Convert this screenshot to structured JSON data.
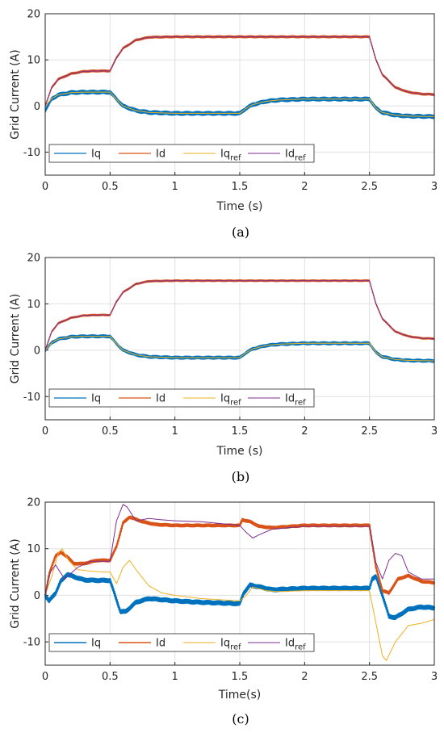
{
  "colors": {
    "Iq": "#0072BD",
    "Id": "#D95319",
    "Iq_ref": "#EDB120",
    "Id_ref": "#7E2F8E",
    "grid": "#e0e0e0",
    "axis": "#262626"
  },
  "chart_data": [
    {
      "type": "line",
      "caption": "(a)",
      "xlabel": "Time (s)",
      "ylabel": "Grid Current (A)",
      "xlim": [
        0,
        3
      ],
      "ylim": [
        -15,
        20
      ],
      "xticks": [
        "0",
        "0.5",
        "1",
        "1.5",
        "2",
        "2.5",
        "3"
      ],
      "yticks": [
        "20",
        "10",
        "0",
        "-10"
      ],
      "grid": true,
      "legend": {
        "placement": "bottom-left",
        "orientation": "horizontal",
        "entries": [
          {
            "base": "Iq",
            "sub": ""
          },
          {
            "base": "Id",
            "sub": ""
          },
          {
            "base": "Iq",
            "sub": "ref"
          },
          {
            "base": "Id",
            "sub": "ref"
          }
        ]
      },
      "series": [
        {
          "name": "Iq",
          "color_key": "Iq",
          "width": 1.2,
          "noise": 0.9,
          "x": [
            0,
            0.05,
            0.1,
            0.2,
            0.3,
            0.4,
            0.5,
            0.55,
            0.6,
            0.7,
            0.8,
            1.0,
            1.2,
            1.5,
            1.55,
            1.6,
            1.7,
            1.8,
            2.0,
            2.3,
            2.5,
            2.55,
            2.6,
            2.7,
            2.8,
            3.0
          ],
          "y": [
            -1,
            1.5,
            2.4,
            2.9,
            3.0,
            3.0,
            3.0,
            1.5,
            0.0,
            -1.0,
            -1.4,
            -1.6,
            -1.6,
            -1.6,
            -0.5,
            0.3,
            1.0,
            1.3,
            1.5,
            1.5,
            1.5,
            -0.5,
            -1.4,
            -2.0,
            -2.2,
            -2.3
          ]
        },
        {
          "name": "Id",
          "color_key": "Id",
          "width": 1.2,
          "noise": 0.5,
          "x": [
            0,
            0.05,
            0.1,
            0.2,
            0.3,
            0.4,
            0.5,
            0.55,
            0.6,
            0.7,
            0.8,
            1.0,
            1.2,
            1.5,
            2.0,
            2.5,
            2.55,
            2.6,
            2.7,
            2.8,
            2.9,
            3.0
          ],
          "y": [
            0,
            4.0,
            5.8,
            7.0,
            7.5,
            7.6,
            7.6,
            10.5,
            12.5,
            14.3,
            14.9,
            15.0,
            15.0,
            15.0,
            15.0,
            15.0,
            10.0,
            6.8,
            4.0,
            3.0,
            2.6,
            2.5
          ]
        },
        {
          "name": "Iq_ref",
          "color_key": "Iq_ref",
          "width": 1.0,
          "noise": 0,
          "x": [
            0,
            0.05,
            0.1,
            0.2,
            0.3,
            0.4,
            0.5,
            0.55,
            0.6,
            0.7,
            0.8,
            1.0,
            1.5,
            1.55,
            1.6,
            1.7,
            1.8,
            2.0,
            2.5,
            2.55,
            2.6,
            2.7,
            2.8,
            3.0
          ],
          "y": [
            0,
            1.6,
            2.4,
            2.9,
            3.0,
            3.0,
            3.0,
            1.4,
            0.0,
            -1.0,
            -1.4,
            -1.6,
            -1.6,
            -0.5,
            0.3,
            1.0,
            1.3,
            1.5,
            1.5,
            -0.5,
            -1.4,
            -2.0,
            -2.2,
            -2.3
          ]
        },
        {
          "name": "Id_ref",
          "color_key": "Id_ref",
          "width": 1.0,
          "noise": 0,
          "x": [
            0,
            0.05,
            0.1,
            0.2,
            0.3,
            0.4,
            0.5,
            0.55,
            0.6,
            0.7,
            0.8,
            1.0,
            2.5,
            2.55,
            2.6,
            2.7,
            2.8,
            2.9,
            3.0
          ],
          "y": [
            0,
            4.0,
            5.8,
            7.0,
            7.5,
            7.6,
            7.6,
            10.5,
            12.5,
            14.3,
            14.9,
            15.0,
            15.0,
            10.0,
            6.8,
            4.0,
            3.0,
            2.6,
            2.5
          ]
        }
      ]
    },
    {
      "type": "line",
      "caption": "(b)",
      "xlabel": "Time (s)",
      "ylabel": "Grid Current (A)",
      "xlim": [
        0,
        3
      ],
      "ylim": [
        -15,
        20
      ],
      "xticks": [
        "0",
        "0.5",
        "1",
        "1.5",
        "2",
        "2.5",
        "3"
      ],
      "yticks": [
        "20",
        "10",
        "0",
        "-10"
      ],
      "grid": true,
      "legend": {
        "placement": "bottom-left",
        "orientation": "horizontal",
        "entries": [
          {
            "base": "Iq",
            "sub": ""
          },
          {
            "base": "Id",
            "sub": ""
          },
          {
            "base": "Iq",
            "sub": "ref"
          },
          {
            "base": "Id",
            "sub": "ref"
          }
        ]
      },
      "series": [
        {
          "name": "Iq",
          "color_key": "Iq",
          "width": 1.2,
          "noise": 0.7,
          "x": [
            0,
            0.05,
            0.1,
            0.2,
            0.3,
            0.4,
            0.5,
            0.55,
            0.6,
            0.7,
            0.8,
            1.0,
            1.2,
            1.5,
            1.55,
            1.6,
            1.7,
            1.8,
            2.0,
            2.3,
            2.5,
            2.55,
            2.6,
            2.7,
            2.8,
            3.0
          ],
          "y": [
            0,
            1.6,
            2.4,
            2.9,
            3.0,
            3.0,
            3.0,
            1.4,
            0.0,
            -1.0,
            -1.4,
            -1.6,
            -1.6,
            -1.6,
            -0.5,
            0.3,
            1.0,
            1.3,
            1.5,
            1.5,
            1.5,
            -0.5,
            -1.4,
            -2.0,
            -2.2,
            -2.3
          ]
        },
        {
          "name": "Id",
          "color_key": "Id",
          "width": 1.2,
          "noise": 0.4,
          "x": [
            0,
            0.05,
            0.1,
            0.2,
            0.3,
            0.4,
            0.5,
            0.55,
            0.6,
            0.7,
            0.8,
            1.0,
            1.2,
            1.5,
            2.0,
            2.5,
            2.55,
            2.6,
            2.7,
            2.8,
            2.9,
            3.0
          ],
          "y": [
            0,
            4.0,
            5.8,
            7.0,
            7.5,
            7.6,
            7.6,
            10.5,
            12.5,
            14.3,
            14.9,
            15.0,
            15.0,
            15.0,
            15.0,
            15.0,
            10.0,
            6.8,
            4.0,
            3.0,
            2.6,
            2.5
          ]
        },
        {
          "name": "Iq_ref",
          "color_key": "Iq_ref",
          "width": 1.0,
          "noise": 0,
          "x": [
            0,
            0.05,
            0.1,
            0.2,
            0.3,
            0.4,
            0.5,
            0.55,
            0.6,
            0.7,
            0.8,
            1.0,
            1.5,
            1.55,
            1.6,
            1.7,
            1.8,
            2.0,
            2.5,
            2.55,
            2.6,
            2.7,
            2.8,
            3.0
          ],
          "y": [
            0,
            1.6,
            2.4,
            2.9,
            3.0,
            3.0,
            3.0,
            1.4,
            0.0,
            -1.0,
            -1.4,
            -1.6,
            -1.6,
            -0.5,
            0.3,
            1.0,
            1.3,
            1.5,
            1.5,
            -0.5,
            -1.4,
            -2.0,
            -2.2,
            -2.3
          ]
        },
        {
          "name": "Id_ref",
          "color_key": "Id_ref",
          "width": 1.0,
          "noise": 0,
          "x": [
            0,
            0.05,
            0.1,
            0.2,
            0.3,
            0.4,
            0.5,
            0.55,
            0.6,
            0.7,
            0.8,
            1.0,
            2.5,
            2.55,
            2.6,
            2.7,
            2.8,
            2.9,
            3.0
          ],
          "y": [
            0,
            4.0,
            5.8,
            7.0,
            7.5,
            7.6,
            7.6,
            10.5,
            12.5,
            14.3,
            14.9,
            15.0,
            15.0,
            10.0,
            6.8,
            4.0,
            3.0,
            2.6,
            2.5
          ]
        }
      ]
    },
    {
      "type": "line",
      "caption": "(c)",
      "xlabel": "Time(s)",
      "ylabel": "Grid Current (A)",
      "xlim": [
        0,
        3
      ],
      "ylim": [
        -15,
        20
      ],
      "xticks": [
        "0",
        "0.5",
        "1",
        "1.5",
        "2",
        "2.5",
        "3"
      ],
      "yticks": [
        "20",
        "10",
        "0",
        "-10"
      ],
      "grid": true,
      "legend": {
        "placement": "bottom-left",
        "orientation": "horizontal",
        "entries": [
          {
            "base": "Iq",
            "sub": ""
          },
          {
            "base": "Id",
            "sub": ""
          },
          {
            "base": "Iq",
            "sub": "ref"
          },
          {
            "base": "Id",
            "sub": "ref"
          }
        ]
      },
      "series": [
        {
          "name": "Iq",
          "color_key": "Iq",
          "width": 2.2,
          "noise": 0.8,
          "x": [
            0,
            0.03,
            0.08,
            0.12,
            0.17,
            0.22,
            0.3,
            0.4,
            0.5,
            0.55,
            0.58,
            0.62,
            0.7,
            0.8,
            1.0,
            1.2,
            1.5,
            1.53,
            1.58,
            1.65,
            1.75,
            2.0,
            2.5,
            2.52,
            2.55,
            2.6,
            2.65,
            2.7,
            2.8,
            2.9,
            3.0
          ],
          "y": [
            0,
            -1.2,
            0.5,
            3.0,
            4.5,
            4.0,
            3.3,
            3.2,
            3.2,
            -1.0,
            -3.5,
            -3.5,
            -1.5,
            -0.7,
            -1.2,
            -1.5,
            -1.8,
            0.5,
            2.2,
            1.8,
            1.2,
            1.5,
            1.5,
            3.5,
            4.0,
            0.0,
            -4.5,
            -4.8,
            -3.0,
            -2.5,
            -2.7
          ]
        },
        {
          "name": "Id",
          "color_key": "Id",
          "width": 2.2,
          "noise": 0.5,
          "x": [
            0,
            0.03,
            0.08,
            0.12,
            0.17,
            0.22,
            0.3,
            0.4,
            0.5,
            0.55,
            0.6,
            0.65,
            0.75,
            0.85,
            1.0,
            1.3,
            1.5,
            1.52,
            1.58,
            1.65,
            1.75,
            2.0,
            2.5,
            2.55,
            2.6,
            2.65,
            2.72,
            2.8,
            2.9,
            3.0
          ],
          "y": [
            0,
            4.5,
            8.5,
            9.2,
            8.3,
            6.8,
            6.8,
            7.5,
            7.5,
            10.5,
            15.5,
            16.8,
            15.8,
            15.2,
            15.0,
            15.0,
            15.0,
            16.2,
            15.8,
            14.8,
            14.5,
            15.0,
            15.0,
            6.0,
            1.0,
            0.5,
            3.5,
            4.2,
            3.0,
            2.7
          ]
        },
        {
          "name": "Iq_ref",
          "color_key": "Iq_ref",
          "width": 1.0,
          "noise": 0,
          "x": [
            0,
            0.05,
            0.1,
            0.13,
            0.18,
            0.25,
            0.35,
            0.45,
            0.5,
            0.55,
            0.6,
            0.65,
            0.7,
            0.8,
            0.9,
            1.0,
            1.2,
            1.5,
            1.55,
            1.6,
            1.7,
            1.8,
            2.0,
            2.5,
            2.55,
            2.6,
            2.63,
            2.7,
            2.8,
            2.9,
            3.0
          ],
          "y": [
            0,
            4.0,
            9.0,
            10.0,
            7.5,
            5.5,
            5.2,
            5.0,
            5.0,
            2.5,
            6.0,
            7.5,
            5.5,
            2.0,
            0.5,
            0.0,
            -0.7,
            -1.2,
            0.0,
            1.8,
            1.0,
            0.8,
            1.0,
            1.0,
            -6.0,
            -13.0,
            -14.0,
            -10.0,
            -6.5,
            -6.0,
            -5.2
          ]
        },
        {
          "name": "Id_ref",
          "color_key": "Id_ref",
          "width": 1.0,
          "noise": 0,
          "x": [
            0,
            0.04,
            0.08,
            0.15,
            0.25,
            0.35,
            0.45,
            0.5,
            0.55,
            0.6,
            0.63,
            0.7,
            0.8,
            0.9,
            1.0,
            1.2,
            1.5,
            1.55,
            1.6,
            1.65,
            1.75,
            2.0,
            2.5,
            2.55,
            2.6,
            2.65,
            2.7,
            2.75,
            2.8,
            2.9,
            3.0
          ],
          "y": [
            0,
            5.0,
            6.5,
            3.5,
            6.0,
            7.3,
            7.3,
            7.3,
            16.0,
            19.5,
            19.0,
            16.0,
            16.5,
            16.2,
            16.0,
            15.8,
            15.0,
            13.5,
            12.3,
            13.0,
            14.2,
            14.8,
            14.8,
            7.0,
            3.5,
            7.5,
            9.0,
            8.5,
            5.0,
            3.5,
            3.5
          ]
        }
      ]
    }
  ]
}
